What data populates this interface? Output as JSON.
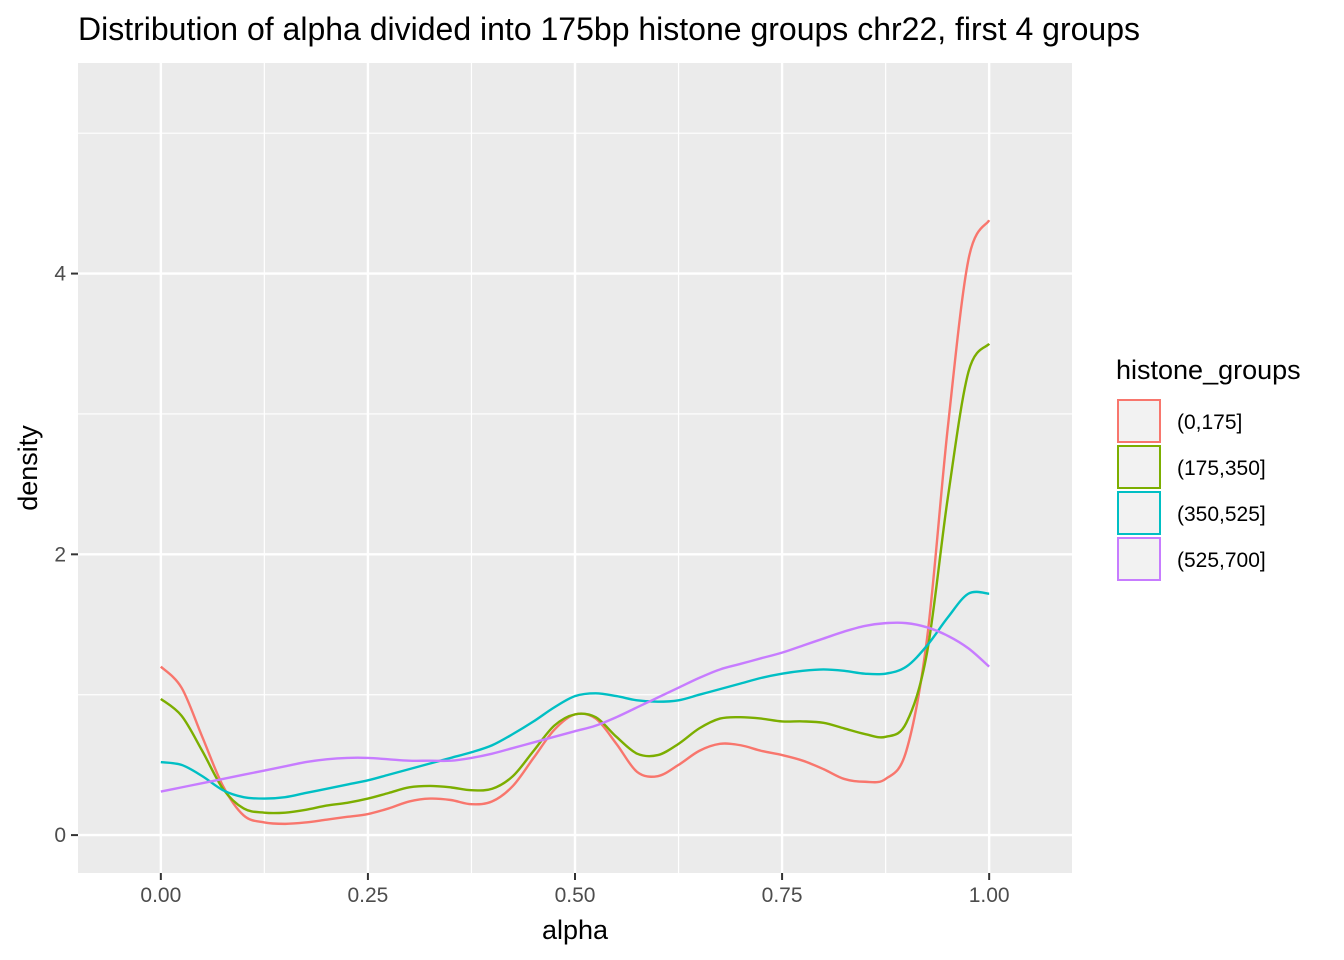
{
  "chart_data": {
    "type": "line",
    "title": "Distribution of alpha divided into 175bp histone groups chr22, first 4 groups",
    "xlabel": "alpha",
    "ylabel": "density",
    "xlim": [
      -0.1,
      1.1
    ],
    "ylim": [
      -0.27,
      5.5
    ],
    "x_ticks": [
      0.0,
      0.25,
      0.5,
      0.75,
      1.0
    ],
    "x_tick_labels": [
      "0.00",
      "0.25",
      "0.50",
      "0.75",
      "1.00"
    ],
    "y_ticks": [
      0,
      2,
      4
    ],
    "y_tick_labels": [
      "0",
      "2",
      "4"
    ],
    "grid": true,
    "legend": {
      "title": "histone_groups",
      "position": "right"
    },
    "series": [
      {
        "name": "(0,175]",
        "color": "#F8766D",
        "x": [
          0.0,
          0.025,
          0.05,
          0.075,
          0.1,
          0.125,
          0.15,
          0.175,
          0.2,
          0.225,
          0.25,
          0.275,
          0.3,
          0.325,
          0.35,
          0.375,
          0.4,
          0.425,
          0.45,
          0.475,
          0.5,
          0.525,
          0.55,
          0.575,
          0.6,
          0.625,
          0.65,
          0.675,
          0.7,
          0.725,
          0.75,
          0.775,
          0.8,
          0.825,
          0.85,
          0.875,
          0.9,
          0.925,
          0.95,
          0.975,
          1.0
        ],
        "y": [
          1.2,
          1.05,
          0.7,
          0.35,
          0.14,
          0.09,
          0.08,
          0.09,
          0.11,
          0.13,
          0.15,
          0.19,
          0.24,
          0.26,
          0.25,
          0.22,
          0.24,
          0.35,
          0.55,
          0.75,
          0.86,
          0.83,
          0.65,
          0.45,
          0.42,
          0.5,
          0.6,
          0.65,
          0.64,
          0.6,
          0.57,
          0.53,
          0.47,
          0.4,
          0.38,
          0.4,
          0.6,
          1.4,
          2.9,
          4.1,
          4.38
        ]
      },
      {
        "name": "(175,350]",
        "color": "#7CAE00",
        "x": [
          0.0,
          0.025,
          0.05,
          0.075,
          0.1,
          0.125,
          0.15,
          0.175,
          0.2,
          0.225,
          0.25,
          0.275,
          0.3,
          0.325,
          0.35,
          0.375,
          0.4,
          0.425,
          0.45,
          0.475,
          0.5,
          0.525,
          0.55,
          0.575,
          0.6,
          0.625,
          0.65,
          0.675,
          0.7,
          0.725,
          0.75,
          0.775,
          0.8,
          0.825,
          0.85,
          0.875,
          0.9,
          0.925,
          0.95,
          0.975,
          1.0
        ],
        "y": [
          0.97,
          0.85,
          0.6,
          0.33,
          0.19,
          0.16,
          0.16,
          0.18,
          0.21,
          0.23,
          0.26,
          0.3,
          0.34,
          0.35,
          0.34,
          0.32,
          0.33,
          0.42,
          0.6,
          0.78,
          0.86,
          0.84,
          0.7,
          0.58,
          0.57,
          0.65,
          0.76,
          0.83,
          0.84,
          0.83,
          0.81,
          0.81,
          0.8,
          0.76,
          0.72,
          0.7,
          0.8,
          1.3,
          2.4,
          3.3,
          3.5
        ]
      },
      {
        "name": "(350,525]",
        "color": "#00BFC4",
        "x": [
          0.0,
          0.025,
          0.05,
          0.075,
          0.1,
          0.125,
          0.15,
          0.175,
          0.2,
          0.225,
          0.25,
          0.275,
          0.3,
          0.325,
          0.35,
          0.375,
          0.4,
          0.425,
          0.45,
          0.475,
          0.5,
          0.525,
          0.55,
          0.575,
          0.6,
          0.625,
          0.65,
          0.675,
          0.7,
          0.725,
          0.75,
          0.775,
          0.8,
          0.825,
          0.85,
          0.875,
          0.9,
          0.925,
          0.95,
          0.975,
          1.0
        ],
        "y": [
          0.52,
          0.5,
          0.42,
          0.32,
          0.27,
          0.26,
          0.27,
          0.3,
          0.33,
          0.36,
          0.39,
          0.43,
          0.47,
          0.51,
          0.55,
          0.59,
          0.64,
          0.72,
          0.81,
          0.91,
          0.99,
          1.01,
          0.99,
          0.96,
          0.95,
          0.96,
          1.0,
          1.04,
          1.08,
          1.12,
          1.15,
          1.17,
          1.18,
          1.17,
          1.15,
          1.15,
          1.2,
          1.35,
          1.55,
          1.72,
          1.72
        ]
      },
      {
        "name": "(525,700]",
        "color": "#C77CFF",
        "x": [
          0.0,
          0.025,
          0.05,
          0.075,
          0.1,
          0.125,
          0.15,
          0.175,
          0.2,
          0.225,
          0.25,
          0.275,
          0.3,
          0.325,
          0.35,
          0.375,
          0.4,
          0.425,
          0.45,
          0.475,
          0.5,
          0.525,
          0.55,
          0.575,
          0.6,
          0.625,
          0.65,
          0.675,
          0.7,
          0.725,
          0.75,
          0.775,
          0.8,
          0.825,
          0.85,
          0.875,
          0.9,
          0.925,
          0.95,
          0.975,
          1.0
        ],
        "y": [
          0.31,
          0.34,
          0.37,
          0.4,
          0.43,
          0.46,
          0.49,
          0.52,
          0.54,
          0.55,
          0.55,
          0.54,
          0.53,
          0.53,
          0.53,
          0.55,
          0.58,
          0.62,
          0.66,
          0.7,
          0.74,
          0.78,
          0.84,
          0.91,
          0.98,
          1.05,
          1.12,
          1.18,
          1.22,
          1.26,
          1.3,
          1.35,
          1.4,
          1.45,
          1.49,
          1.51,
          1.51,
          1.48,
          1.42,
          1.33,
          1.2
        ]
      }
    ]
  }
}
